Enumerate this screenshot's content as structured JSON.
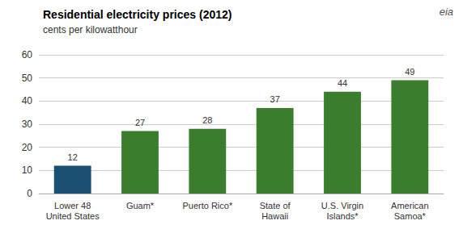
{
  "chart_data": {
    "type": "bar",
    "title": "Residential electricity prices (2012)",
    "subtitle": "cents per kilowatthour",
    "annotations": [
      "eia"
    ],
    "categories": [
      "Lower 48\nUnited States",
      "Guam*",
      "Puerto Rico*",
      "State of\nHawaii",
      "U.S. Virgin\nIslands*",
      "American\nSamoa*"
    ],
    "values": [
      12,
      27,
      28,
      37,
      44,
      49
    ],
    "colors": [
      "#1a4f72",
      "#3a7d2c",
      "#3a7d2c",
      "#3a7d2c",
      "#3a7d2c",
      "#3a7d2c"
    ],
    "ylim": [
      0,
      60
    ],
    "yticks": [
      0,
      10,
      20,
      30,
      40,
      50,
      60
    ],
    "grid": true,
    "data_labels": true
  }
}
